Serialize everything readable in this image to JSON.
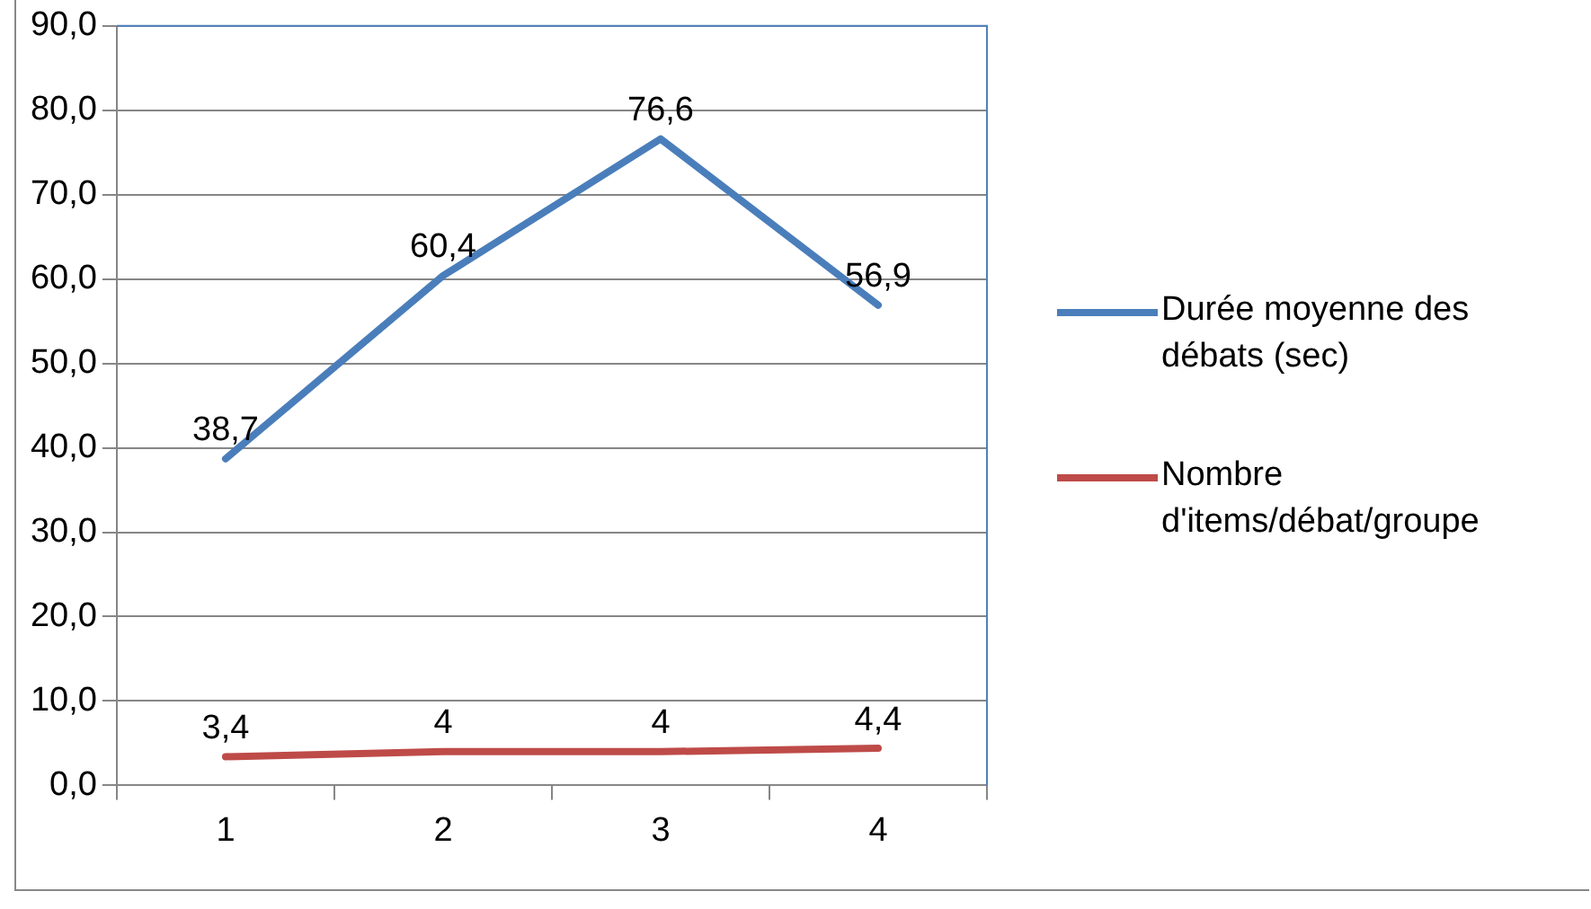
{
  "chart_data": {
    "type": "line",
    "categories": [
      "1",
      "2",
      "3",
      "4"
    ],
    "series": [
      {
        "name": "Durée moyenne des débats (sec)",
        "color": "#4a7ebb",
        "values": [
          38.7,
          60.4,
          76.6,
          56.9
        ],
        "value_labels": [
          "38,7",
          "60,4",
          "76,6",
          "56,9"
        ]
      },
      {
        "name": "Nombre d'items/débat/groupe",
        "color": "#be4b48",
        "values": [
          3.4,
          4,
          4,
          4.4
        ],
        "value_labels": [
          "3,4",
          "4",
          "4",
          "4,4"
        ]
      }
    ],
    "ylim": [
      0,
      90
    ],
    "yticks": [
      {
        "value": 0,
        "label": "0,0"
      },
      {
        "value": 10,
        "label": "10,0"
      },
      {
        "value": 20,
        "label": "20,0"
      },
      {
        "value": 30,
        "label": "30,0"
      },
      {
        "value": 40,
        "label": "40,0"
      },
      {
        "value": 50,
        "label": "50,0"
      },
      {
        "value": 60,
        "label": "60,0"
      },
      {
        "value": 70,
        "label": "70,0"
      },
      {
        "value": 80,
        "label": "80,0"
      },
      {
        "value": 90,
        "label": "90,0"
      }
    ],
    "grid": "y",
    "legend": "right",
    "marker": "none",
    "line_style": "solid"
  }
}
